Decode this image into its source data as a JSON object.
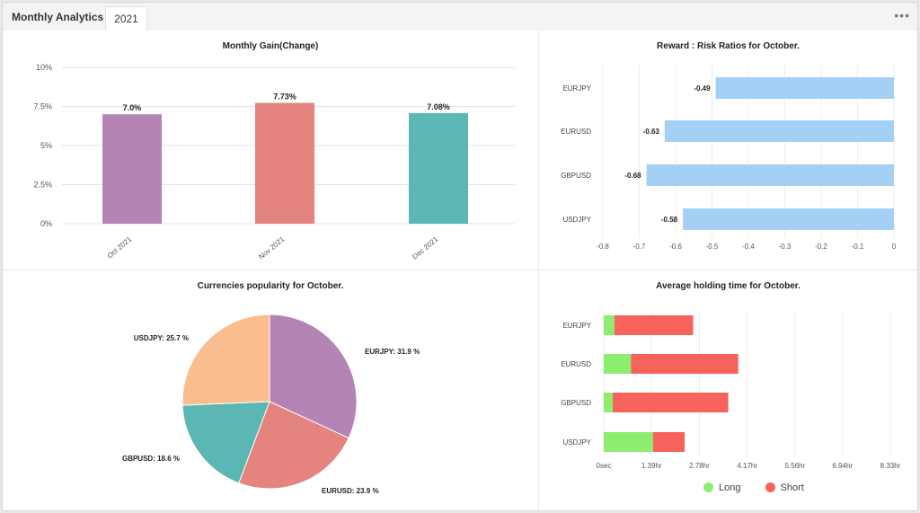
{
  "header": {
    "title": "Monthly Analytics",
    "year_tab": "2021",
    "menu": "•••"
  },
  "colors": {
    "purple": "#b384b4",
    "salmon": "#e5837f",
    "teal": "#5bb6b4",
    "peach": "#f9bd8e",
    "blue": "#a3d0f4",
    "green": "#8ded6f",
    "red": "#f7625c"
  },
  "chart_data": [
    {
      "type": "bar",
      "title": "Monthly Gain(Change)",
      "categories": [
        "Oct 2021",
        "Nov 2021",
        "Dec 2021"
      ],
      "values": [
        7.0,
        7.73,
        7.08
      ],
      "value_labels": [
        "7.0%",
        "7.73%",
        "7.08%"
      ],
      "colors": [
        "#b384b4",
        "#e5837f",
        "#5bb6b4"
      ],
      "ylim": [
        0,
        10
      ],
      "yticks": [
        0,
        2.5,
        5,
        7.5,
        10
      ],
      "ytick_labels": [
        "0%",
        "2.5%",
        "5%",
        "7.5%",
        "10%"
      ],
      "grid": true
    },
    {
      "type": "bar",
      "orientation": "horizontal",
      "title": "Reward : Risk Ratios for October.",
      "categories": [
        "EURJPY",
        "EURUSD",
        "GBPUSD",
        "USDJPY"
      ],
      "values": [
        -0.49,
        -0.63,
        -0.68,
        -0.58
      ],
      "value_labels": [
        "-0.49",
        "-0.63",
        "-0.68",
        "-0.58"
      ],
      "color": "#a3d0f4",
      "xlim": [
        -0.8,
        0
      ],
      "xticks": [
        -0.8,
        -0.7,
        -0.6,
        -0.5,
        -0.4,
        -0.3,
        -0.2,
        -0.1,
        0
      ],
      "xtick_labels": [
        "-0.8",
        "-0.7",
        "-0.6",
        "-0.5",
        "-0.4",
        "-0.3",
        "-0.2",
        "-0.1",
        "0"
      ],
      "grid": true
    },
    {
      "type": "pie",
      "title": "Currencies popularity for October.",
      "slices": [
        {
          "label": "EURJPY",
          "value": 31.9,
          "text": "EURJPY: 31.9 %",
          "color": "#b384b4"
        },
        {
          "label": "EURUSD",
          "value": 23.9,
          "text": "EURUSD: 23.9 %",
          "color": "#e5837f"
        },
        {
          "label": "GBPUSD",
          "value": 18.6,
          "text": "GBPUSD: 18.6 %",
          "color": "#5bb6b4"
        },
        {
          "label": "USDJPY",
          "value": 25.7,
          "text": "USDJPY: 25.7 %",
          "color": "#f9bd8e"
        }
      ]
    },
    {
      "type": "bar",
      "orientation": "horizontal",
      "stacked": true,
      "title": "Average holding time for October.",
      "categories": [
        "EURJPY",
        "EURUSD",
        "GBPUSD",
        "USDJPY"
      ],
      "series": [
        {
          "name": "Long",
          "color": "#8ded6f",
          "values": [
            0.31,
            0.79,
            0.26,
            1.43
          ]
        },
        {
          "name": "Short",
          "color": "#f7625c",
          "values": [
            2.29,
            3.12,
            3.36,
            0.92
          ]
        }
      ],
      "xlim": [
        0,
        8.33
      ],
      "xticks": [
        0,
        1.39,
        2.78,
        4.17,
        5.56,
        6.94,
        8.33
      ],
      "xtick_labels": [
        "0sec",
        "1.39hr",
        "2.78hr",
        "4.17hr",
        "5.56hr",
        "6.94hr",
        "8.33hr"
      ],
      "legend": "bottom",
      "grid": true
    }
  ]
}
